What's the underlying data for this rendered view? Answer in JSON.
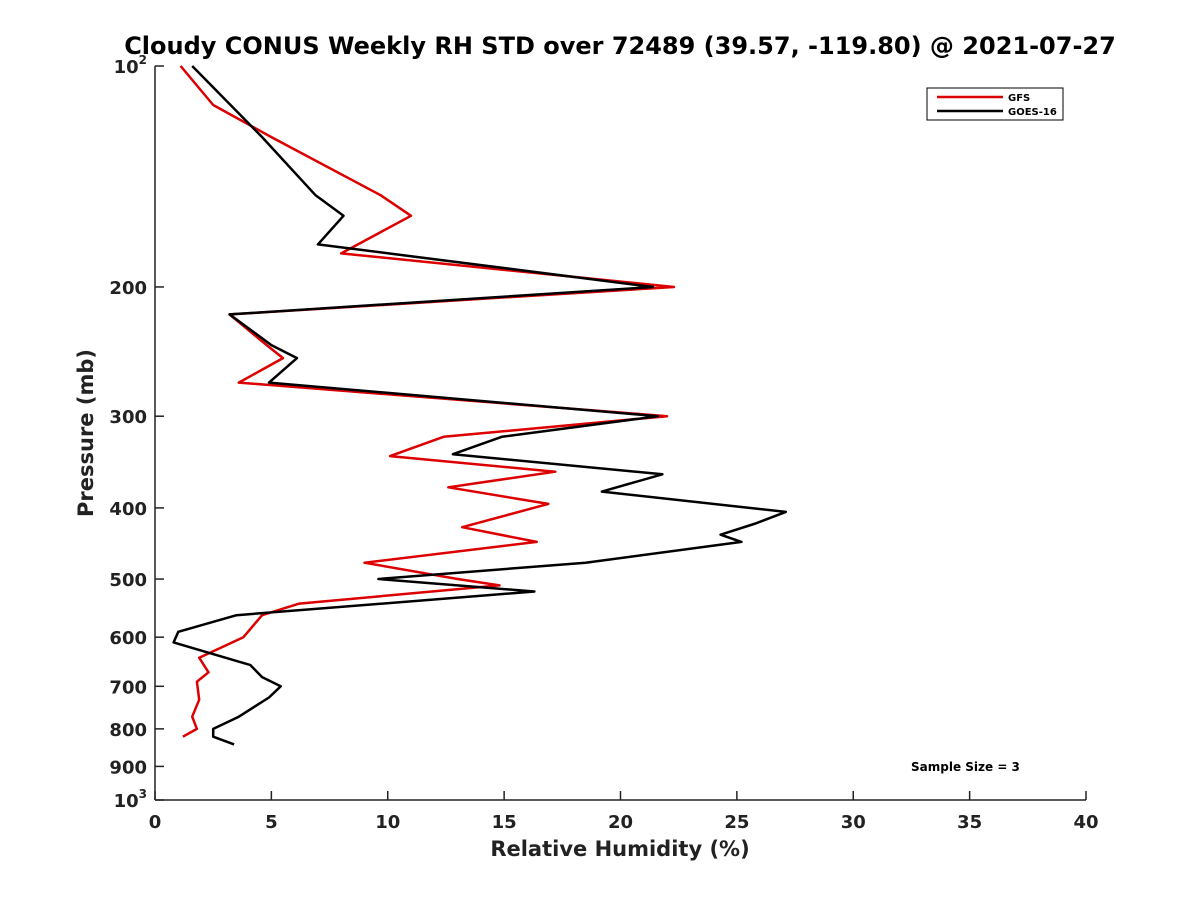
{
  "chart_data": {
    "type": "line",
    "title": "Cloudy CONUS Weekly RH STD over 72489 (39.57, -119.80) @ 2021-07-27",
    "xlabel": "Relative Humidity (%)",
    "ylabel": "Pressure (mb)",
    "xlim": [
      0,
      40
    ],
    "ylim": [
      100,
      1000
    ],
    "yscale": "log",
    "y_reversed": true,
    "x_ticks": [
      "0",
      "5",
      "10",
      "15",
      "20",
      "25",
      "30",
      "35",
      "40"
    ],
    "y_ticks": [
      {
        "value": 100,
        "label": "10",
        "exp": "2"
      },
      {
        "value": 200,
        "label": "200",
        "exp": ""
      },
      {
        "value": 300,
        "label": "300",
        "exp": ""
      },
      {
        "value": 400,
        "label": "400",
        "exp": ""
      },
      {
        "value": 500,
        "label": "500",
        "exp": ""
      },
      {
        "value": 600,
        "label": "600",
        "exp": ""
      },
      {
        "value": 700,
        "label": "700",
        "exp": ""
      },
      {
        "value": 800,
        "label": "800",
        "exp": ""
      },
      {
        "value": 900,
        "label": "900",
        "exp": ""
      },
      {
        "value": 1000,
        "label": "10",
        "exp": "3"
      }
    ],
    "grid": false,
    "legend_position": "top-right",
    "annotation": "Sample Size = 3",
    "series": [
      {
        "name": "GFS",
        "color": "#dd0000",
        "points": [
          [
            1.1,
            100
          ],
          [
            2.5,
            113
          ],
          [
            5.0,
            125
          ],
          [
            9.7,
            150
          ],
          [
            11.0,
            160
          ],
          [
            8.0,
            180
          ],
          [
            22.3,
            200
          ],
          [
            3.2,
            218
          ],
          [
            4.8,
            240
          ],
          [
            5.5,
            250
          ],
          [
            3.6,
            270
          ],
          [
            22.0,
            300
          ],
          [
            12.4,
            320
          ],
          [
            10.1,
            340
          ],
          [
            17.2,
            357
          ],
          [
            12.6,
            375
          ],
          [
            16.9,
            395
          ],
          [
            13.2,
            425
          ],
          [
            16.4,
            445
          ],
          [
            9.0,
            475
          ],
          [
            13.0,
            500
          ],
          [
            14.8,
            510
          ],
          [
            6.2,
            540
          ],
          [
            4.6,
            560
          ],
          [
            3.8,
            600
          ],
          [
            1.9,
            640
          ],
          [
            2.3,
            670
          ],
          [
            1.8,
            690
          ],
          [
            1.9,
            730
          ],
          [
            1.6,
            770
          ],
          [
            1.8,
            800
          ],
          [
            1.2,
            820
          ]
        ]
      },
      {
        "name": "GOES-16",
        "color": "#000000",
        "points": [
          [
            1.6,
            100
          ],
          [
            4.6,
            125
          ],
          [
            6.9,
            150
          ],
          [
            8.1,
            160
          ],
          [
            7.0,
            175
          ],
          [
            21.4,
            200
          ],
          [
            3.2,
            218
          ],
          [
            5.0,
            240
          ],
          [
            6.1,
            250
          ],
          [
            4.9,
            270
          ],
          [
            21.6,
            300
          ],
          [
            14.9,
            320
          ],
          [
            12.8,
            338
          ],
          [
            21.8,
            360
          ],
          [
            19.2,
            380
          ],
          [
            27.1,
            405
          ],
          [
            25.8,
            420
          ],
          [
            24.3,
            435
          ],
          [
            25.2,
            445
          ],
          [
            18.5,
            475
          ],
          [
            9.6,
            500
          ],
          [
            16.3,
            520
          ],
          [
            3.5,
            560
          ],
          [
            1.0,
            590
          ],
          [
            0.8,
            610
          ],
          [
            4.1,
            655
          ],
          [
            4.6,
            680
          ],
          [
            5.4,
            700
          ],
          [
            4.9,
            725
          ],
          [
            3.6,
            770
          ],
          [
            2.5,
            800
          ],
          [
            2.5,
            820
          ],
          [
            3.4,
            840
          ]
        ]
      }
    ]
  }
}
